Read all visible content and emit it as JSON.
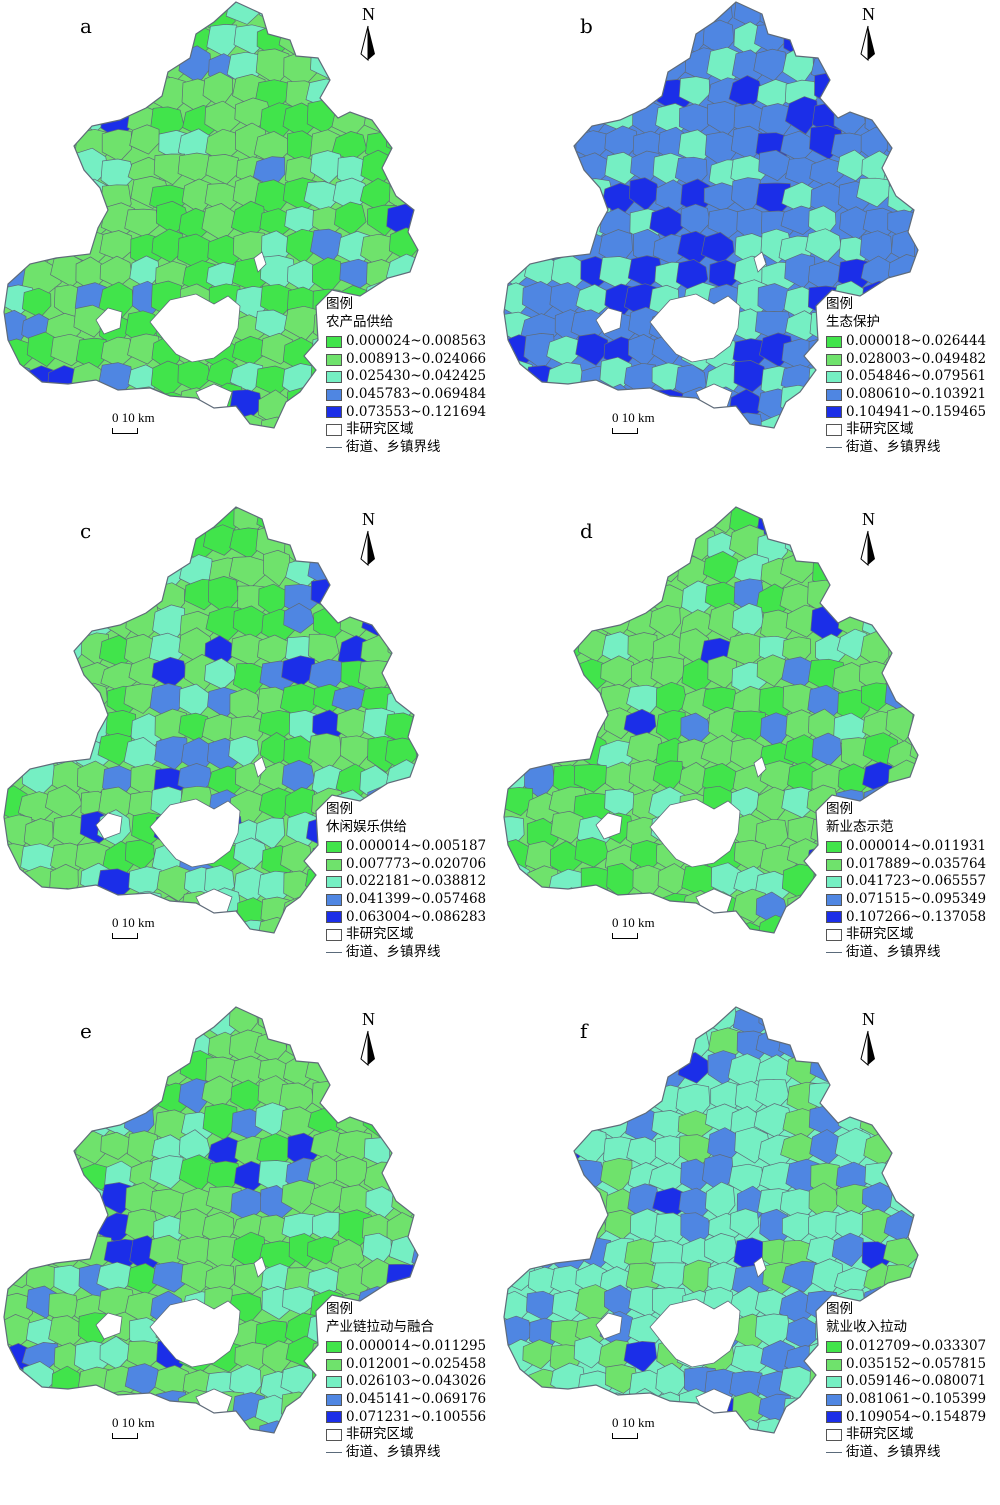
{
  "colors": {
    "class1": "#41e44b",
    "class2": "#6fe26c",
    "class3": "#75efc3",
    "class4": "#4f86e2",
    "class5": "#1b2ee8",
    "boundary": "#5f6b79",
    "no_data": "#ffffff"
  },
  "common": {
    "north_label": "N",
    "legend_title": "图例",
    "scale_label": "0  10 km",
    "non_study_label": "非研究区域",
    "boundary_label": "街道、乡镇界线"
  },
  "panels": [
    {
      "letter": "a",
      "legend_subtitle": "农产品供给",
      "classes": [
        "0.000024~0.008563",
        "0.008913~0.024066",
        "0.025430~0.042425",
        "0.045783~0.069484",
        "0.073553~0.121694"
      ],
      "dominant_class": 2
    },
    {
      "letter": "b",
      "legend_subtitle": "生态保护",
      "classes": [
        "0.000018~0.026444",
        "0.028003~0.049482",
        "0.054846~0.079561",
        "0.080610~0.103921",
        "0.104941~0.159465"
      ],
      "dominant_class": 4
    },
    {
      "letter": "c",
      "legend_subtitle": "休闲娱乐供给",
      "classes": [
        "0.000014~0.005187",
        "0.007773~0.020706",
        "0.022181~0.038812",
        "0.041399~0.057468",
        "0.063004~0.086283"
      ],
      "dominant_class": 2
    },
    {
      "letter": "d",
      "legend_subtitle": "新业态示范",
      "classes": [
        "0.000014~0.011931",
        "0.017889~0.035764",
        "0.041723~0.065557",
        "0.071515~0.095349",
        "0.107266~0.137058"
      ],
      "dominant_class": 2
    },
    {
      "letter": "e",
      "legend_subtitle": "产业链拉动与融合",
      "classes": [
        "0.000014~0.011295",
        "0.012001~0.025458",
        "0.026103~0.043026",
        "0.045141~0.069176",
        "0.071231~0.100556"
      ],
      "dominant_class": 2
    },
    {
      "letter": "f",
      "legend_subtitle": "就业收入拉动",
      "classes": [
        "0.012709~0.033307",
        "0.035152~0.057815",
        "0.059146~0.080071",
        "0.081061~0.105399",
        "0.109054~0.154879"
      ],
      "dominant_class": 3
    }
  ]
}
